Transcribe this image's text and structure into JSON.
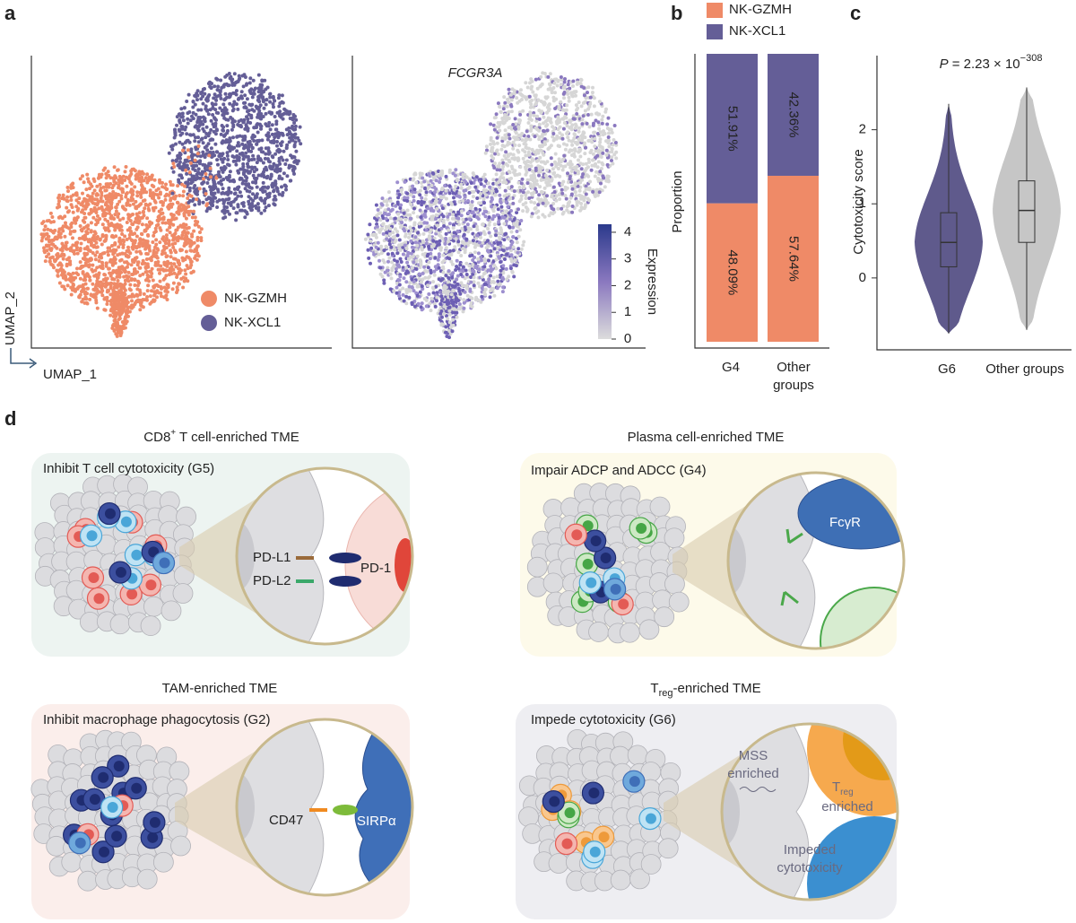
{
  "figure": {
    "panel_labels": [
      "a",
      "b",
      "c",
      "d"
    ]
  },
  "chart_data": [
    {
      "type": "umap",
      "xlabel": "UMAP_1",
      "ylabel": "UMAP_2",
      "legend": [
        {
          "name": "NK-GZMH",
          "color": "#ef8a67"
        },
        {
          "name": "NK-XCL1",
          "color": "#645e97"
        }
      ]
    },
    {
      "type": "feature",
      "title": "FCGR3A",
      "colorbar_label": "Expression",
      "clim": [
        0,
        4.3
      ],
      "cticks": [
        0,
        1,
        2,
        3,
        4
      ],
      "colors": [
        "#dcdcdc",
        "#8a78bf",
        "#2b3a8c"
      ]
    },
    {
      "type": "stacked_bar",
      "ylabel": "Proportion",
      "categories": [
        "G4",
        "Other groups"
      ],
      "ylim": [
        0,
        100
      ],
      "series": [
        {
          "name": "NK-GZMH",
          "color": "#ef8a67",
          "values": [
            48.09,
            57.64
          ],
          "value_labels": [
            "48.09%",
            "57.64%"
          ]
        },
        {
          "name": "NK-XCL1",
          "color": "#645e97",
          "values": [
            51.91,
            42.36
          ],
          "value_labels": [
            "51.91%",
            "42.36%"
          ]
        }
      ]
    },
    {
      "type": "violin",
      "ylabel": "Cytotoxicity score",
      "categories": [
        "G6",
        "Other groups"
      ],
      "colors": [
        "#5f5a8c",
        "#c6c6c6"
      ],
      "ylim": [
        -0.97,
        3.0
      ],
      "yticks": [
        0,
        1,
        2
      ],
      "annotation": {
        "italic": "P",
        "text": " = 2.23 × 10",
        "sup": "−308"
      },
      "min": [
        -0.75,
        -0.7
      ],
      "q1": [
        0.15,
        0.48
      ],
      "median": [
        0.48,
        0.91
      ],
      "q3": [
        0.88,
        1.31
      ],
      "max": [
        2.35,
        2.57
      ]
    }
  ],
  "diagram": {
    "panels": [
      {
        "title": [
          "CD8",
          "+",
          " T cell-enriched TME"
        ],
        "subtitle": "Inhibit T cell cytotoxicity (G5)",
        "labels": [
          "PD-L1",
          "PD-L2",
          "PD-1"
        ]
      },
      {
        "title": "Plasma cell-enriched TME",
        "subtitle": "Impair ADCP and ADCC (G4)",
        "labels": [
          "FcγR"
        ]
      },
      {
        "title": "TAM-enriched TME",
        "subtitle": "Inhibit macrophage phagocytosis (G2)",
        "labels": [
          "CD47",
          "SIRPα"
        ]
      },
      {
        "title": [
          "T",
          "reg",
          "-enriched TME"
        ],
        "subtitle": "Impede cytotoxicity (G6)",
        "labels": [
          [
            "MSS",
            "enriched"
          ],
          [
            "T",
            "reg",
            "enriched"
          ],
          [
            "Impeded",
            "cytotoxicity"
          ]
        ]
      }
    ]
  }
}
